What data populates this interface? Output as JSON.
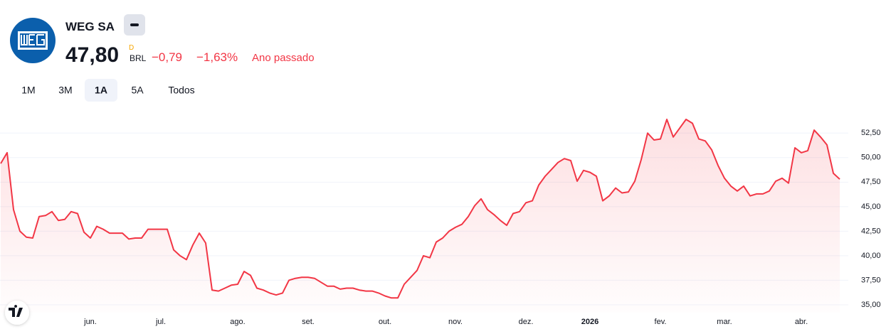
{
  "header": {
    "name": "WEG SA",
    "price": "47,80",
    "price_flag": "D",
    "currency": "BRL",
    "change": "−0,79",
    "change_percent": "−1,63%",
    "period": "Ano passado",
    "ranges": [
      "1M",
      "3M",
      "1A",
      "5A",
      "Todos"
    ]
  },
  "chart_data": {
    "type": "line",
    "color": "#f23645",
    "grid": true,
    "categories": [
      null,
      null,
      null,
      null,
      null,
      null,
      null,
      null,
      null,
      null,
      null,
      null,
      null,
      null,
      "jun.",
      null,
      null,
      null,
      null,
      null,
      null,
      null,
      null,
      null,
      null,
      "jul.",
      null,
      null,
      null,
      null,
      null,
      null,
      null,
      null,
      null,
      null,
      null,
      "ago.",
      null,
      null,
      null,
      null,
      null,
      null,
      null,
      null,
      null,
      null,
      "set.",
      null,
      null,
      null,
      null,
      null,
      null,
      null,
      null,
      null,
      null,
      null,
      "out.",
      null,
      null,
      null,
      null,
      null,
      null,
      null,
      null,
      null,
      null,
      "nov.",
      null,
      null,
      null,
      null,
      null,
      null,
      null,
      null,
      null,
      null,
      "dez.",
      null,
      null,
      null,
      null,
      null,
      null,
      null,
      null,
      null,
      "2026",
      null,
      null,
      null,
      null,
      null,
      null,
      null,
      null,
      null,
      null,
      "fev.",
      null,
      null,
      null,
      null,
      null,
      null,
      null,
      null,
      null,
      "mar.",
      null,
      null,
      null,
      null,
      null,
      null,
      null,
      null,
      null,
      null,
      null,
      "abr.",
      null,
      null,
      null,
      null,
      null,
      null
    ],
    "values": [
      49.4,
      50.5,
      44.7,
      42.5,
      41.9,
      41.8,
      44.0,
      44.1,
      44.5,
      43.6,
      43.7,
      44.5,
      44.3,
      42.4,
      41.8,
      43.0,
      42.7,
      42.3,
      42.3,
      42.3,
      41.7,
      41.8,
      41.8,
      42.7,
      42.7,
      42.7,
      42.7,
      40.6,
      40.0,
      39.6,
      41.1,
      42.3,
      41.3,
      36.5,
      36.4,
      36.7,
      37.0,
      37.1,
      38.4,
      38.0,
      36.7,
      36.5,
      36.2,
      36.0,
      36.2,
      37.5,
      37.7,
      37.8,
      37.8,
      37.7,
      37.3,
      36.9,
      36.9,
      36.6,
      36.7,
      36.7,
      36.5,
      36.4,
      36.4,
      36.2,
      35.9,
      35.7,
      35.7,
      37.1,
      37.8,
      38.5,
      40.0,
      39.8,
      41.4,
      41.8,
      42.5,
      42.9,
      43.2,
      44.0,
      45.1,
      45.8,
      44.7,
      44.2,
      43.6,
      43.1,
      44.3,
      44.5,
      45.4,
      45.6,
      47.2,
      48.1,
      48.8,
      49.5,
      49.9,
      49.7,
      47.6,
      48.7,
      48.5,
      48.1,
      45.6,
      46.1,
      46.9,
      46.4,
      46.5,
      47.6,
      49.8,
      52.5,
      51.8,
      51.9,
      53.9,
      52.1,
      53.0,
      53.9,
      53.5,
      51.9,
      51.7,
      50.8,
      49.2,
      47.9,
      47.1,
      46.6,
      47.1,
      46.1,
      46.3,
      46.3,
      46.6,
      47.6,
      47.9,
      47.4,
      51.0,
      50.5,
      50.7,
      52.8,
      52.1,
      51.3,
      48.4,
      47.8
    ],
    "ylim": [
      34.2,
      55.2
    ],
    "yticks": [
      {
        "value": 35,
        "label": "35,00"
      },
      {
        "value": 37.5,
        "label": "37,50"
      },
      {
        "value": 40,
        "label": "40,00"
      },
      {
        "value": 42.5,
        "label": "42,50"
      },
      {
        "value": 45,
        "label": "45,00"
      },
      {
        "value": 47.5,
        "label": "47,50"
      },
      {
        "value": 50,
        "label": "50,00"
      },
      {
        "value": 52.5,
        "label": "52,50"
      }
    ]
  }
}
